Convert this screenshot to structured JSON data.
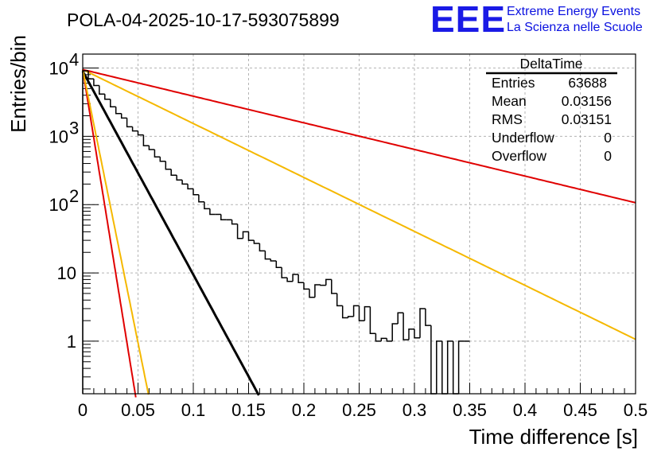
{
  "header": {
    "run_title": "POLA-04-2025-10-17-593075899",
    "logo_mark": "EEE",
    "logo_line1": "Extreme Energy Events",
    "logo_line2": "La Scienza nelle Scuole"
  },
  "stats": {
    "title": "DeltaTime",
    "rows": [
      {
        "label": "Entries",
        "value": "63688"
      },
      {
        "label": "Mean",
        "value": "0.03156"
      },
      {
        "label": "RMS",
        "value": "0.03151"
      },
      {
        "label": "Underflow",
        "value": "0"
      },
      {
        "label": "Overflow",
        "value": "0"
      }
    ]
  },
  "chart_data": {
    "type": "line",
    "title": "POLA-04-2025-10-17-593075899",
    "xlabel": "Time difference [s]",
    "ylabel": "Entries/bin",
    "xlim": [
      0,
      0.5
    ],
    "ylim": [
      0.17,
      16000
    ],
    "yscale": "log",
    "grid": true,
    "x_ticks": [
      "0",
      "0.05",
      "0.1",
      "0.15",
      "0.2",
      "0.25",
      "0.3",
      "0.35",
      "0.4",
      "0.45",
      "0.5"
    ],
    "x_tick_values": [
      0,
      0.05,
      0.1,
      0.15,
      0.2,
      0.25,
      0.3,
      0.35,
      0.4,
      0.45,
      0.5
    ],
    "y_ticks": [
      {
        "value": 10000,
        "base": "10",
        "exp": "4"
      },
      {
        "value": 1000,
        "base": "10",
        "exp": "3"
      },
      {
        "value": 100,
        "base": "10",
        "exp": "2"
      },
      {
        "value": 10,
        "base": "10",
        "exp": ""
      },
      {
        "value": 1,
        "base": "1",
        "exp": ""
      }
    ],
    "histogram": {
      "name": "DeltaTime",
      "color": "#000000",
      "bin_width": 0.005,
      "x_start": 0,
      "counts": [
        9100,
        6950,
        5550,
        4150,
        3500,
        2700,
        2150,
        1850,
        1380,
        1200,
        1050,
        730,
        640,
        500,
        430,
        330,
        270,
        230,
        200,
        170,
        140,
        110,
        87,
        72,
        72,
        60,
        60,
        52,
        32,
        40,
        30,
        27,
        21,
        16,
        15,
        12,
        8.5,
        7.5,
        9.5,
        7.2,
        5.8,
        4.4,
        6.7,
        6.6,
        8,
        5,
        3.3,
        2.2,
        2.3,
        3.3,
        2,
        3.2,
        1.3,
        1,
        1.1,
        1,
        1.8,
        2.6,
        1.05,
        1.5,
        1.12,
        3,
        1.7,
        0.15,
        1,
        0.15,
        1,
        0.15,
        1,
        1
      ]
    },
    "series": [
      {
        "name": "fit",
        "color": "#000000",
        "width": 3,
        "y0": 9000,
        "slope": 29.8,
        "x_end": 0.35
      },
      {
        "name": "red-fast",
        "color": "#e00000",
        "width": 2,
        "y0": 9500,
        "slope": 100,
        "x_end": 0.12
      },
      {
        "name": "orange-fast",
        "color": "#f5b800",
        "width": 2,
        "y0": 9500,
        "slope": 80,
        "x_end": 0.14
      },
      {
        "name": "orange-slow",
        "color": "#f5b800",
        "width": 2,
        "y0": 9500,
        "slope": 7.9,
        "x_end": 0.5
      },
      {
        "name": "red-slow",
        "color": "#e00000",
        "width": 2,
        "y0": 9500,
        "slope": 3.9,
        "x_end": 0.5
      }
    ]
  }
}
